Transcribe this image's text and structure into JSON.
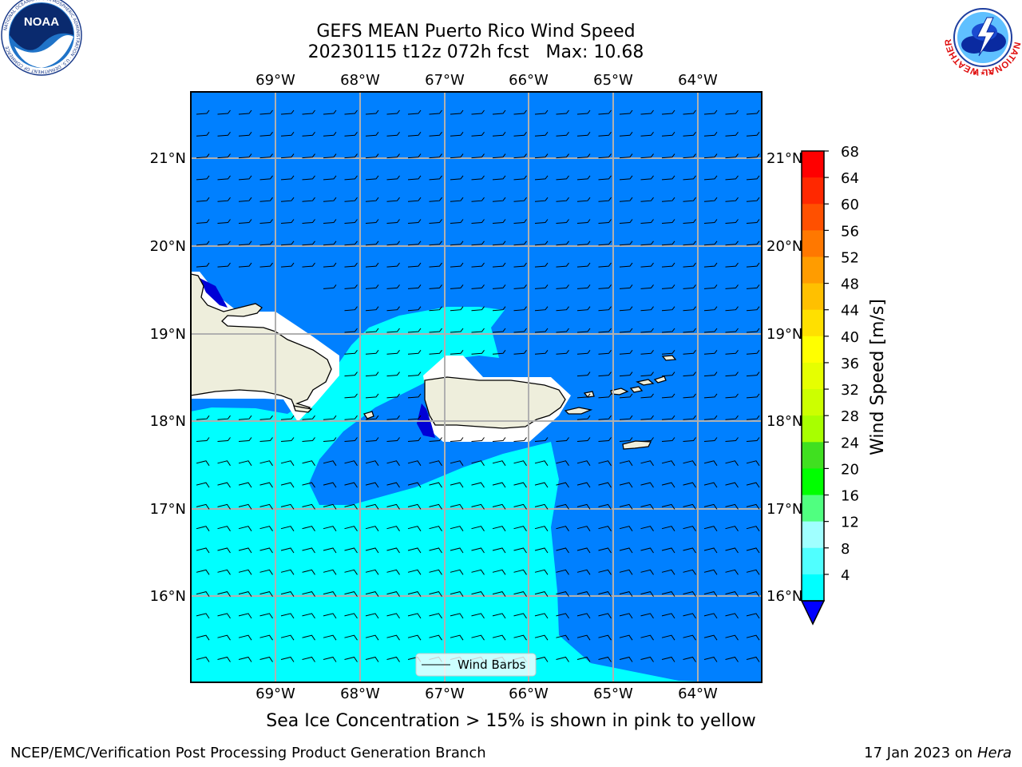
{
  "title": {
    "line1": "GEFS MEAN Puerto Rico Wind Speed",
    "line2": "20230115 t12z 072h fcst   Max: 10.68"
  },
  "subtitle": "Sea Ice Concentration > 15% is shown in pink to yellow",
  "footer": {
    "left": "NCEP/EMC/Verification Post Processing Product Generation Branch",
    "right_date": "17 Jan 2023 on ",
    "right_host": "Hera"
  },
  "logos": {
    "left": {
      "name": "noaa-logo",
      "text": "NOAA",
      "ring_text": "NATIONAL OCEANIC AND ATMOSPHERIC ADMINISTRATION · U.S. DEPARTMENT OF COMMERCE"
    },
    "right": {
      "name": "nws-logo",
      "ring_text": "NATIONAL WEATHER SERVICE"
    }
  },
  "map": {
    "lon_labels": [
      "69°W",
      "68°W",
      "67°W",
      "66°W",
      "65°W",
      "64°W"
    ],
    "lat_labels": [
      "21°N",
      "20°N",
      "19°N",
      "18°N",
      "17°N",
      "16°N"
    ],
    "legend_label": "Wind Barbs",
    "colors": {
      "water_low": "#0080ff",
      "water_mid": "#00ffff",
      "land": "#eeeedc",
      "coast": "#000000",
      "grid": "#b0b0b0",
      "dark_blue": "#0000d6"
    }
  },
  "colorbar": {
    "label": "Wind Speed [m/s]",
    "ticks": [
      "68",
      "64",
      "60",
      "56",
      "52",
      "48",
      "44",
      "40",
      "36",
      "32",
      "28",
      "24",
      "20",
      "16",
      "12",
      "8",
      "4"
    ],
    "colors": [
      "#ff0000",
      "#ff2800",
      "#ff5000",
      "#ff7800",
      "#ff9c00",
      "#ffc000",
      "#ffe000",
      "#ffff00",
      "#e6ff00",
      "#ccff00",
      "#a8ff00",
      "#40e020",
      "#00ff00",
      "#50ff80",
      "#a0ffff",
      "#50ffff",
      "#00ffff",
      "#0080ff"
    ],
    "under_color": "#0000ff"
  }
}
